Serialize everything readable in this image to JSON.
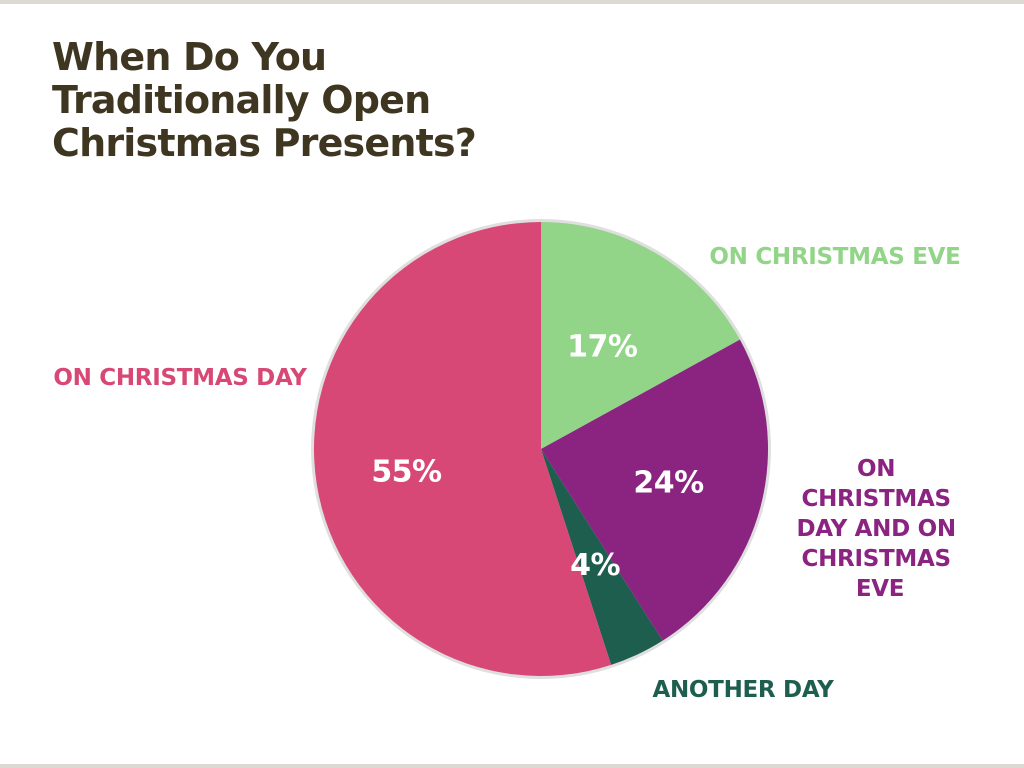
{
  "title_lines": [
    "When Do You",
    "Traditionally Open",
    "Christmas Presents?"
  ],
  "chart_data": {
    "type": "pie",
    "title": "When Do You Traditionally Open Christmas Presents?",
    "start": "12 o'clock, clockwise",
    "slices": [
      {
        "label": "ON CHRISTMAS EVE",
        "value": 17,
        "value_label": "17%",
        "color": "#92d588",
        "label_lines": [
          "ON CHRISTMAS EVE"
        ]
      },
      {
        "label": "ON CHRISTMAS DAY AND ON CHRISTMAS EVE",
        "value": 24,
        "value_label": "24%",
        "color": "#8b2381",
        "label_lines": [
          "ON",
          "CHRISTMAS",
          "DAY AND ON",
          "CHRISTMAS",
          "EVE"
        ]
      },
      {
        "label": "ANOTHER DAY",
        "value": 4,
        "value_label": "4%",
        "color": "#1e5e4f",
        "label_lines": [
          "ANOTHER DAY"
        ]
      },
      {
        "label": "ON CHRISTMAS DAY",
        "value": 55,
        "value_label": "55%",
        "color": "#d84876",
        "label_lines": [
          "ON CHRISTMAS DAY"
        ]
      }
    ],
    "value_label_color": "#ffffff",
    "outline_color": "#dfdfdf"
  }
}
